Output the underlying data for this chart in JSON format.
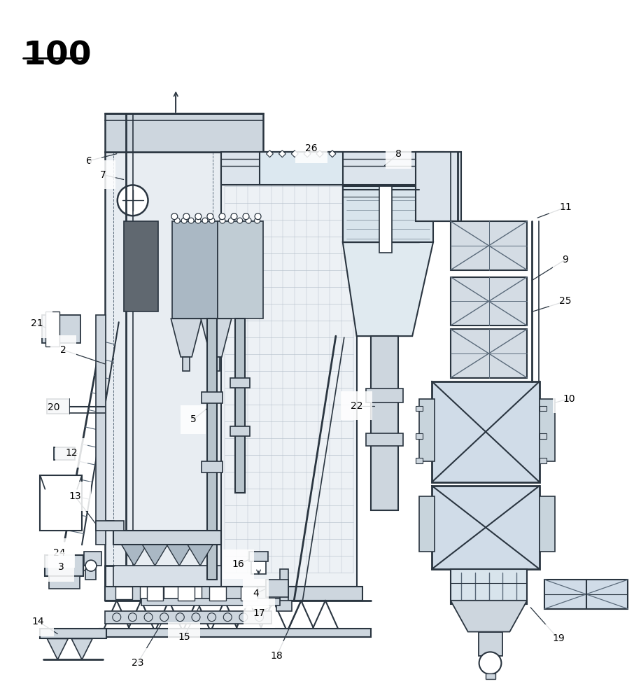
{
  "title": "100",
  "bg_color": "#ffffff",
  "lc": "#5a6a7a",
  "dc": "#2a3540",
  "fl": "#cdd6de",
  "fm": "#aab8c4",
  "fd": "#7a8a96"
}
